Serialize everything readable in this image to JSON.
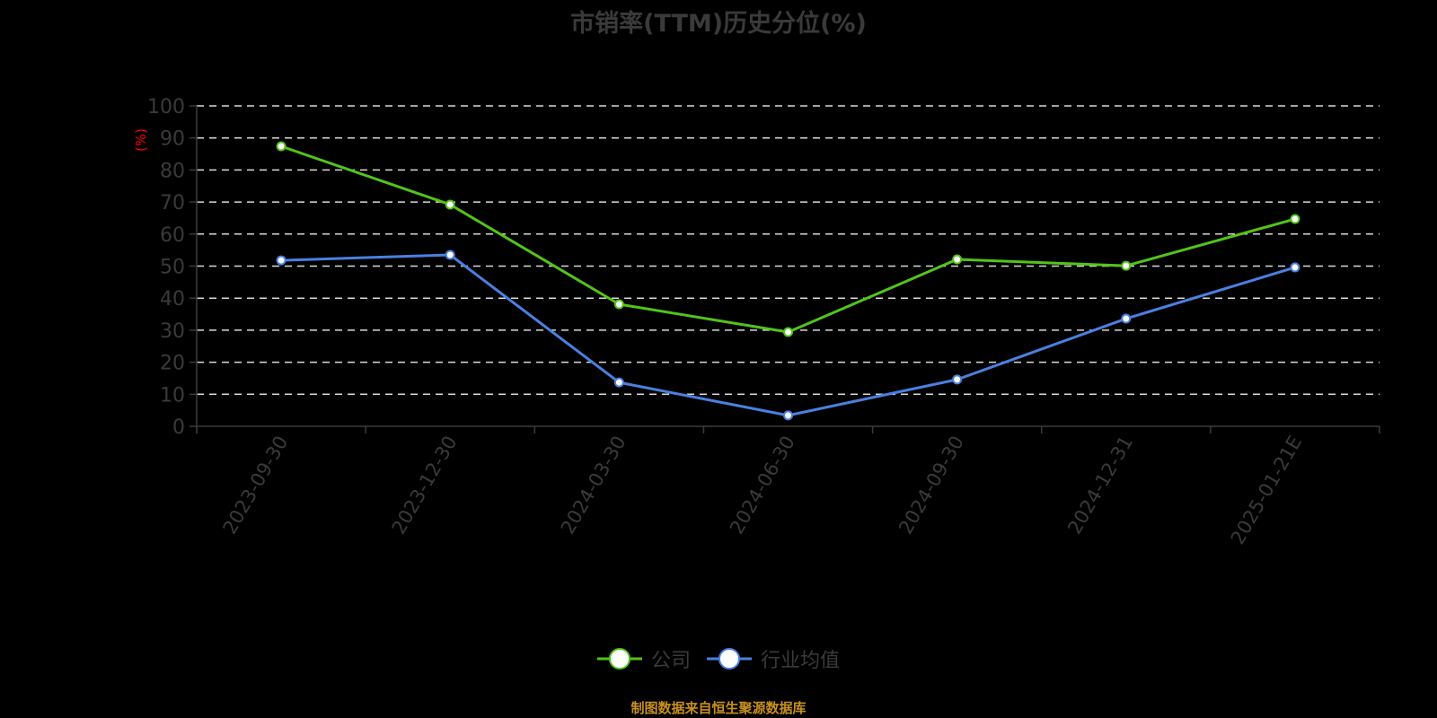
{
  "title": "市销率(TTM)历史分位(%)",
  "y_axis_unit": "(%)",
  "source_text": "制图数据来自恒生聚源数据库",
  "colors": {
    "company": "#52c41a",
    "industry": "#4a80e0",
    "grid": "#d9d9d9",
    "axis": "#3a3a3a",
    "unit_label": "#ff0000",
    "source": "#c8901c"
  },
  "legend": [
    {
      "name": "公司",
      "color": "#52c41a"
    },
    {
      "name": "行业均值",
      "color": "#4a80e0"
    }
  ],
  "chart_data": {
    "type": "line",
    "title": "市销率(TTM)历史分位(%)",
    "xlabel": "",
    "ylabel": "(%)",
    "ylim": [
      0,
      100
    ],
    "yticks": [
      0,
      10,
      20,
      30,
      40,
      50,
      60,
      70,
      80,
      90,
      100
    ],
    "grid": true,
    "legend_position": "bottom",
    "categories": [
      "2023-09-30",
      "2023-12-30",
      "2024-03-30",
      "2024-06-30",
      "2024-09-30",
      "2024-12-31",
      "2025-01-21E"
    ],
    "series": [
      {
        "name": "公司",
        "values": [
          87.4,
          69.2,
          38.1,
          29.4,
          52.1,
          50.1,
          64.7
        ]
      },
      {
        "name": "行业均值",
        "values": [
          51.8,
          53.5,
          13.7,
          3.4,
          14.6,
          33.6,
          49.6
        ]
      }
    ]
  }
}
